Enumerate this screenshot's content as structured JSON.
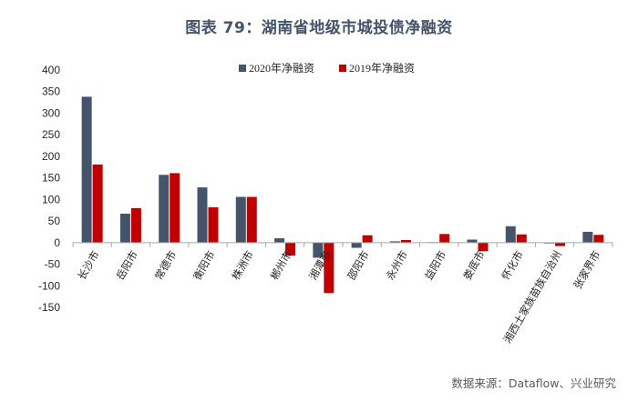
{
  "title": "图表 79：湖南省地级市城投债净融资",
  "source": "数据来源：Dataflow、兴业研究",
  "colors": {
    "series_2020": "#44546a",
    "series_2019": "#c00000",
    "axis": "#a6a6a6",
    "title": "#44546a"
  },
  "chart_data": {
    "type": "bar",
    "title": "图表 79：湖南省地级市城投债净融资",
    "xlabel": "",
    "ylabel": "",
    "ylim": [
      -150,
      400
    ],
    "yticks": [
      -150,
      -100,
      -50,
      0,
      50,
      100,
      150,
      200,
      250,
      300,
      350,
      400
    ],
    "grid": false,
    "legend_position": "top",
    "categories": [
      "长沙市",
      "岳阳市",
      "常德市",
      "衡阳市",
      "株洲市",
      "郴州市",
      "湘潭市",
      "邵阳市",
      "永州市",
      "益阳市",
      "娄底市",
      "怀化市",
      "湘西土家族苗族自治州",
      "张家界市"
    ],
    "series": [
      {
        "name": "2020年净融资",
        "color": "#44546a",
        "values": [
          338,
          67,
          157,
          128,
          106,
          10,
          -35,
          -12,
          3,
          1,
          7,
          38,
          -2,
          25
        ]
      },
      {
        "name": "2019年净融资",
        "color": "#c00000",
        "values": [
          181,
          80,
          161,
          82,
          106,
          -30,
          -117,
          17,
          6,
          20,
          -20,
          19,
          -8,
          18
        ]
      }
    ]
  }
}
